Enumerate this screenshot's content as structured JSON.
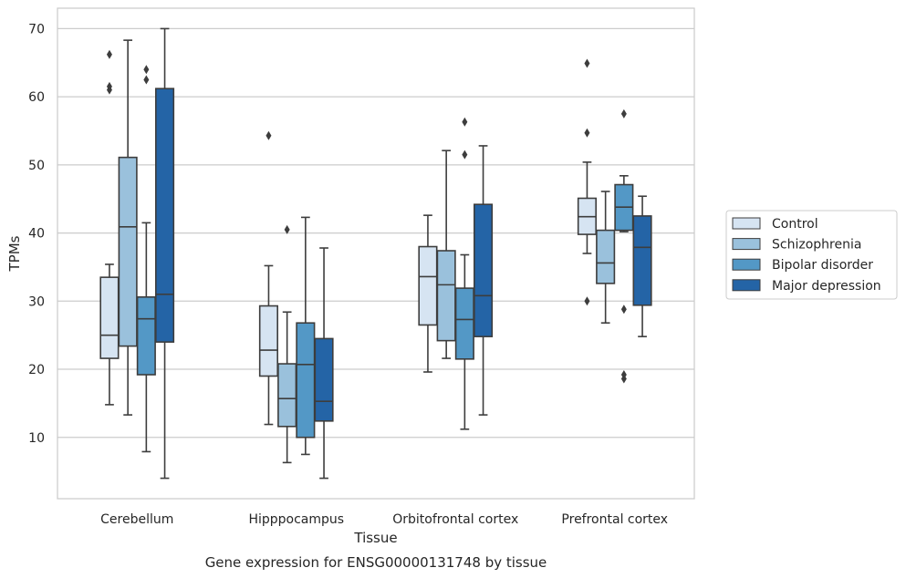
{
  "chart_data": {
    "type": "boxplot",
    "title": "",
    "caption": "Gene expression for ENSG00000131748 by tissue",
    "xlabel": "Tissue",
    "ylabel": "TPMs",
    "ylim": [
      1,
      73
    ],
    "yticks": [
      10,
      20,
      30,
      40,
      50,
      60,
      70
    ],
    "grid": "horizontal",
    "legend_position": "right",
    "categories": [
      "Cerebellum",
      "Hipppocampus",
      "Orbitofrontal cortex",
      "Prefrontal cortex"
    ],
    "series": [
      {
        "name": "Control",
        "color": "#d6e4f2",
        "boxes": [
          {
            "whisker_low": 14.8,
            "q1": 21.6,
            "median": 25.0,
            "q3": 33.5,
            "whisker_high": 35.4,
            "outliers": [
              61.0,
              61.5,
              66.2
            ]
          },
          {
            "whisker_low": 11.9,
            "q1": 19.0,
            "median": 22.8,
            "q3": 29.3,
            "whisker_high": 35.2,
            "outliers": [
              54.3
            ]
          },
          {
            "whisker_low": 19.6,
            "q1": 26.5,
            "median": 33.6,
            "q3": 38.0,
            "whisker_high": 42.6,
            "outliers": []
          },
          {
            "whisker_low": 37.0,
            "q1": 39.8,
            "median": 42.4,
            "q3": 45.1,
            "whisker_high": 50.4,
            "outliers": [
              30.0,
              54.7,
              64.9
            ]
          }
        ]
      },
      {
        "name": "Schizophrenia",
        "color": "#9ac1dc",
        "boxes": [
          {
            "whisker_low": 13.3,
            "q1": 23.4,
            "median": 40.9,
            "q3": 51.1,
            "whisker_high": 68.3,
            "outliers": []
          },
          {
            "whisker_low": 6.3,
            "q1": 11.6,
            "median": 15.7,
            "q3": 20.8,
            "whisker_high": 28.4,
            "outliers": [
              40.5
            ]
          },
          {
            "whisker_low": 21.6,
            "q1": 24.2,
            "median": 32.4,
            "q3": 37.4,
            "whisker_high": 52.1,
            "outliers": []
          },
          {
            "whisker_low": 26.8,
            "q1": 32.6,
            "median": 35.6,
            "q3": 40.4,
            "whisker_high": 46.1,
            "outliers": []
          }
        ]
      },
      {
        "name": "Bipolar disorder",
        "color": "#5398c6",
        "boxes": [
          {
            "whisker_low": 7.9,
            "q1": 19.2,
            "median": 27.4,
            "q3": 30.6,
            "whisker_high": 41.5,
            "outliers": [
              62.5,
              64.0
            ]
          },
          {
            "whisker_low": 7.5,
            "q1": 10.0,
            "median": 20.7,
            "q3": 26.8,
            "whisker_high": 42.3,
            "outliers": []
          },
          {
            "whisker_low": 11.2,
            "q1": 21.5,
            "median": 27.3,
            "q3": 31.9,
            "whisker_high": 36.8,
            "outliers": [
              51.5,
              56.3
            ]
          },
          {
            "whisker_low": 40.2,
            "q1": 40.4,
            "median": 43.8,
            "q3": 47.1,
            "whisker_high": 48.4,
            "outliers": [
              18.6,
              19.2,
              28.8,
              57.5
            ]
          }
        ]
      },
      {
        "name": "Major depression",
        "color": "#2464a6",
        "boxes": [
          {
            "whisker_low": 4.0,
            "q1": 24.0,
            "median": 31.0,
            "q3": 61.2,
            "whisker_high": 70.0,
            "outliers": []
          },
          {
            "whisker_low": 4.0,
            "q1": 12.4,
            "median": 15.3,
            "q3": 24.5,
            "whisker_high": 37.8,
            "outliers": []
          },
          {
            "whisker_low": 13.3,
            "q1": 24.8,
            "median": 30.8,
            "q3": 44.2,
            "whisker_high": 52.8,
            "outliers": []
          },
          {
            "whisker_low": 24.8,
            "q1": 29.4,
            "median": 37.9,
            "q3": 42.5,
            "whisker_high": 45.4,
            "outliers": []
          }
        ]
      }
    ]
  }
}
